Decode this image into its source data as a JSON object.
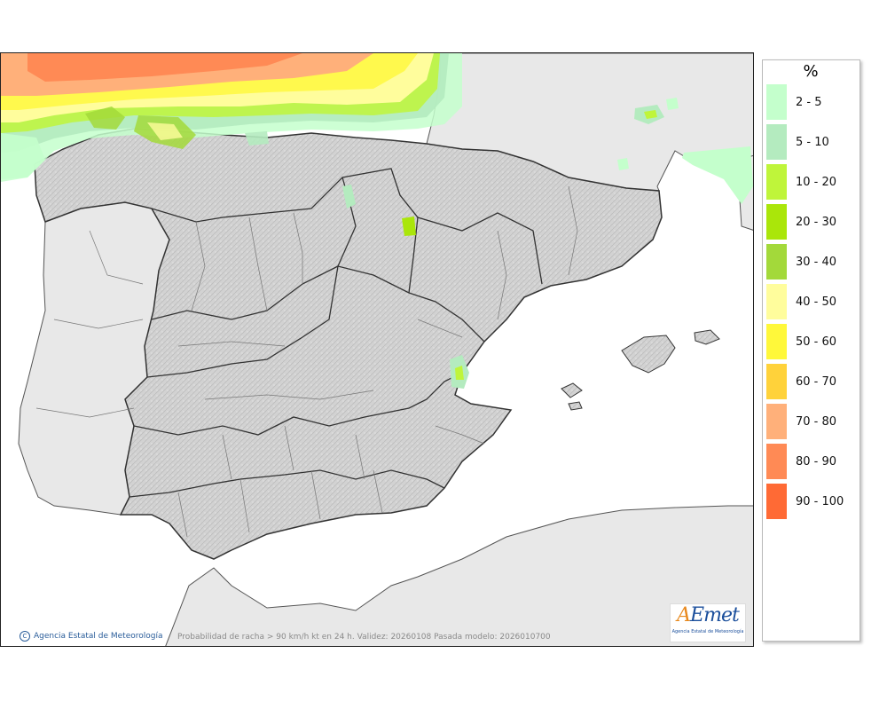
{
  "legend": {
    "title": "%",
    "items": [
      {
        "label": "2 - 5",
        "color": "#c4ffcc"
      },
      {
        "label": "5 - 10",
        "color": "#b4ebbf"
      },
      {
        "label": "10 - 20",
        "color": "#bff53a"
      },
      {
        "label": "20 - 30",
        "color": "#aae60a"
      },
      {
        "label": "30 - 40",
        "color": "#a3d93a"
      },
      {
        "label": "40 - 50",
        "color": "#fffd9c"
      },
      {
        "label": "50 - 60",
        "color": "#fff83a"
      },
      {
        "label": "60 - 70",
        "color": "#ffd23a"
      },
      {
        "label": "70 - 80",
        "color": "#ffb07a"
      },
      {
        "label": "80 - 90",
        "color": "#ff8a55"
      },
      {
        "label": "90 - 100",
        "color": "#ff6a35"
      }
    ]
  },
  "credit": {
    "symbol": "C",
    "text": "Agencia Estatal de Meteorología"
  },
  "caption": "Probabilidad de racha > 90 km/h kt en 24 h. Validez: 20260108 Pasada modelo: 2026010700",
  "logo": {
    "mark_a": "A",
    "mark_rest": "Emet",
    "subtitle": "Agencia Estatal de Meteorología"
  }
}
